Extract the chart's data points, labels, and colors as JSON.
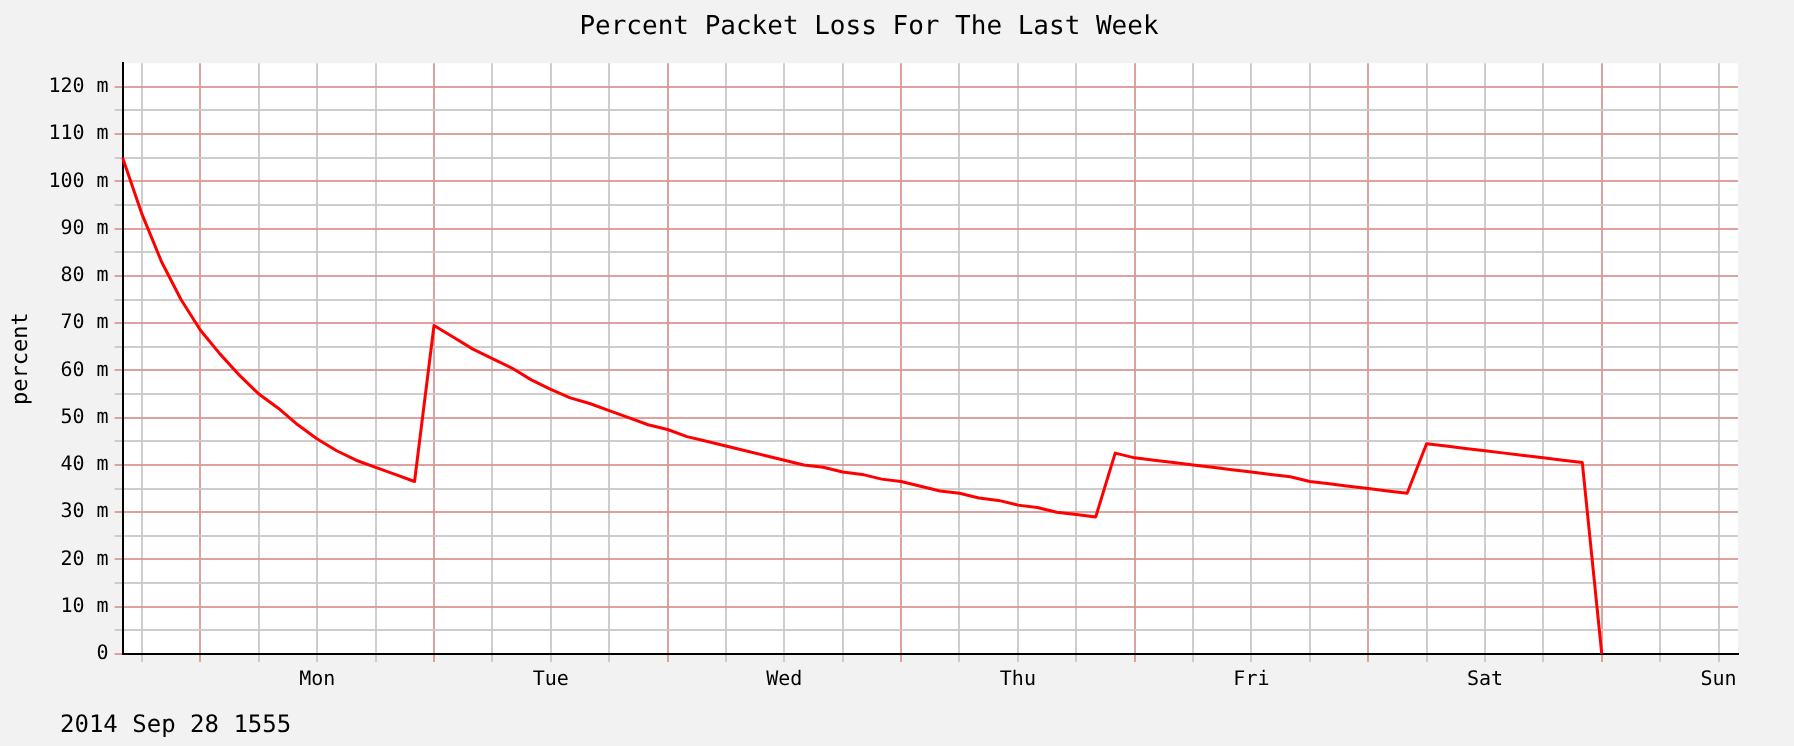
{
  "chart_data": {
    "type": "line",
    "title": "Percent Packet Loss For The Last Week",
    "ylabel": "percent",
    "annotations": [
      "2014 Sep 28 1555"
    ],
    "categories": [
      null,
      null,
      null,
      null,
      null,
      null,
      null,
      null,
      null,
      null,
      "Mon",
      null,
      null,
      null,
      null,
      null,
      null,
      null,
      null,
      null,
      null,
      null,
      "Tue",
      null,
      null,
      null,
      null,
      null,
      null,
      null,
      null,
      null,
      null,
      null,
      "Wed",
      null,
      null,
      null,
      null,
      null,
      null,
      null,
      null,
      null,
      null,
      null,
      "Thu",
      null,
      null,
      null,
      null,
      null,
      null,
      null,
      null,
      null,
      null,
      null,
      "Fri",
      null,
      null,
      null,
      null,
      null,
      null,
      null,
      null,
      null,
      null,
      null,
      "Sat",
      null,
      null,
      null,
      null,
      null,
      null,
      null,
      null,
      null,
      null,
      null,
      "Sun",
      null
    ],
    "series": [
      {
        "color": "#ff0000",
        "values": [
          105,
          93,
          83,
          75,
          68.5,
          63.5,
          59,
          55,
          52,
          48.5,
          45.5,
          43,
          41,
          39.5,
          38,
          36.5,
          69.5,
          67,
          64.5,
          62.5,
          60.5,
          58,
          56,
          54.2,
          53,
          51.5,
          50,
          48.5,
          47.5,
          46,
          45,
          44,
          43,
          42,
          41,
          40,
          39.5,
          38.5,
          38,
          37,
          36.5,
          35.5,
          34.5,
          34,
          33,
          32.5,
          31.5,
          31,
          30,
          29.5,
          29,
          42.5,
          41.5,
          41,
          40.5,
          40,
          39.5,
          39,
          38.5,
          38,
          37.5,
          36.5,
          36,
          35.5,
          35,
          34.5,
          34,
          44.5,
          44,
          43.5,
          43,
          42.5,
          42,
          41.5,
          41,
          40.5,
          0,
          null,
          null,
          null,
          null,
          null,
          null,
          null
        ]
      }
    ],
    "ylim": [
      0,
      125
    ],
    "yticks": [
      0,
      {
        "value": 5,
        "label": null
      },
      {
        "value": 10,
        "label": "10 m"
      },
      {
        "value": 15,
        "label": null
      },
      {
        "value": 20,
        "label": "20 m"
      },
      {
        "value": 25,
        "label": null
      },
      {
        "value": 30,
        "label": "30 m"
      },
      {
        "value": 35,
        "label": null
      },
      {
        "value": 40,
        "label": "40 m"
      },
      {
        "value": 45,
        "label": null
      },
      {
        "value": 50,
        "label": "50 m"
      },
      {
        "value": 55,
        "label": null
      },
      {
        "value": 60,
        "label": "60 m"
      },
      {
        "value": 65,
        "label": null
      },
      {
        "value": 70,
        "label": "70 m"
      },
      {
        "value": 75,
        "label": null
      },
      {
        "value": 80,
        "label": "80 m"
      },
      {
        "value": 85,
        "label": null
      },
      {
        "value": 90,
        "label": "90 m"
      },
      {
        "value": 95,
        "label": null
      },
      {
        "value": 100,
        "label": "100 m"
      },
      {
        "value": 105,
        "label": null
      },
      {
        "value": 110,
        "label": "110 m"
      },
      {
        "value": 115,
        "label": null
      },
      {
        "value": 120,
        "label": "120 m"
      }
    ],
    "grid": true,
    "marker": "none",
    "line_style": "solid",
    "legend": false
  }
}
